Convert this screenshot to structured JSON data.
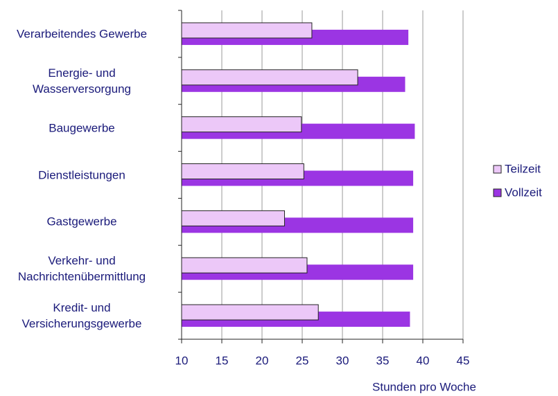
{
  "chart_data": {
    "type": "hbar",
    "categories": [
      "Verarbeitendes Gewerbe",
      "Energie- und\nWasserversorgung",
      "Baugewerbe",
      "Dienstleistungen",
      "Gastgewerbe",
      "Verkehr- und\nNachrichtenübermittlung",
      "Kredit- und\nVersicherungsgewerbe"
    ],
    "series": [
      {
        "name": "Teilzeit",
        "color": "#ecc8f8",
        "values": [
          26.2,
          31.9,
          24.9,
          25.2,
          22.8,
          25.6,
          27.0
        ]
      },
      {
        "name": "Vollzeit",
        "color": "#9b35e3",
        "values": [
          38.2,
          37.8,
          39.0,
          38.8,
          38.8,
          38.8,
          38.4
        ]
      }
    ],
    "xlim": [
      10,
      45
    ],
    "xticks": [
      10,
      15,
      20,
      25,
      30,
      35,
      40,
      45
    ],
    "grid": true,
    "x_label": "Stunden pro Woche",
    "legend": "right"
  }
}
